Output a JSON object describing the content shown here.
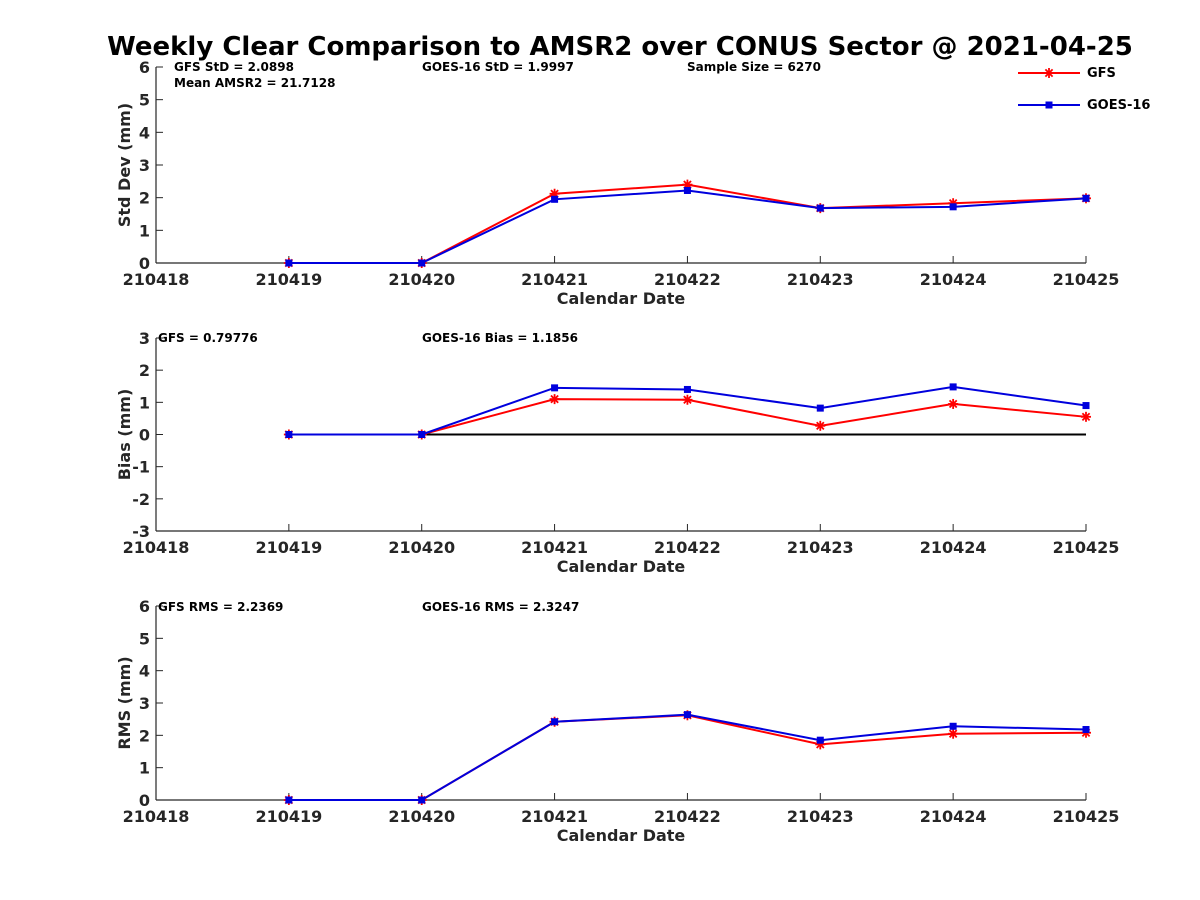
{
  "title": "Weekly Clear Comparison to AMSR2 over CONUS Sector @ 2021-04-25",
  "colors": {
    "gfs": "#ff0000",
    "goes": "#0000dd",
    "axis": "#262626",
    "zero_line": "#000000"
  },
  "legend": {
    "placement": "top-right",
    "items": [
      {
        "label": "GFS",
        "marker": "asterisk",
        "color": "#ff0000"
      },
      {
        "label": "GOES-16",
        "marker": "square",
        "color": "#0000dd"
      }
    ]
  },
  "chart_data": [
    {
      "type": "line",
      "ylabel": "Std Dev (mm)",
      "xlabel": "Calendar Date",
      "x": [
        "210418",
        "210419",
        "210420",
        "210421",
        "210422",
        "210423",
        "210424",
        "210425"
      ],
      "ylim": [
        0,
        6
      ],
      "yticks": [
        0,
        1,
        2,
        3,
        4,
        5,
        6
      ],
      "zero_line": false,
      "annotations": {
        "left1": "GFS StD = 2.0898",
        "left2": "Mean AMSR2 = 21.7128",
        "mid": "GOES-16 StD = 1.9997",
        "right": "Sample Size = 6270"
      },
      "series": [
        {
          "name": "GFS",
          "values": [
            null,
            0,
            0,
            2.12,
            2.4,
            1.68,
            1.83,
            1.98
          ]
        },
        {
          "name": "GOES-16",
          "values": [
            null,
            0,
            0,
            1.95,
            2.22,
            1.68,
            1.72,
            1.98
          ]
        }
      ]
    },
    {
      "type": "line",
      "ylabel": "Bias (mm)",
      "xlabel": "Calendar Date",
      "x": [
        "210418",
        "210419",
        "210420",
        "210421",
        "210422",
        "210423",
        "210424",
        "210425"
      ],
      "ylim": [
        -3,
        3
      ],
      "yticks": [
        -3,
        -2,
        -1,
        0,
        1,
        2,
        3
      ],
      "zero_line": true,
      "annotations": {
        "left1": "GFS = 0.79776",
        "mid": "GOES-16 Bias  = 1.1856"
      },
      "series": [
        {
          "name": "GFS",
          "values": [
            null,
            0,
            0,
            1.1,
            1.08,
            0.27,
            0.95,
            0.55
          ]
        },
        {
          "name": "GOES-16",
          "values": [
            null,
            0,
            0,
            1.45,
            1.4,
            0.82,
            1.48,
            0.9
          ]
        }
      ]
    },
    {
      "type": "line",
      "ylabel": "RMS (mm)",
      "xlabel": "Calendar Date",
      "x": [
        "210418",
        "210419",
        "210420",
        "210421",
        "210422",
        "210423",
        "210424",
        "210425"
      ],
      "ylim": [
        0,
        6
      ],
      "yticks": [
        0,
        1,
        2,
        3,
        4,
        5,
        6
      ],
      "zero_line": false,
      "annotations": {
        "left1": "GFS RMS = 2.2369",
        "mid": "GOES-16 RMS = 2.3247"
      },
      "series": [
        {
          "name": "GFS",
          "values": [
            null,
            0,
            0,
            2.42,
            2.62,
            1.72,
            2.05,
            2.08
          ]
        },
        {
          "name": "GOES-16",
          "values": [
            null,
            0,
            0,
            2.42,
            2.64,
            1.85,
            2.28,
            2.18
          ]
        }
      ]
    }
  ]
}
